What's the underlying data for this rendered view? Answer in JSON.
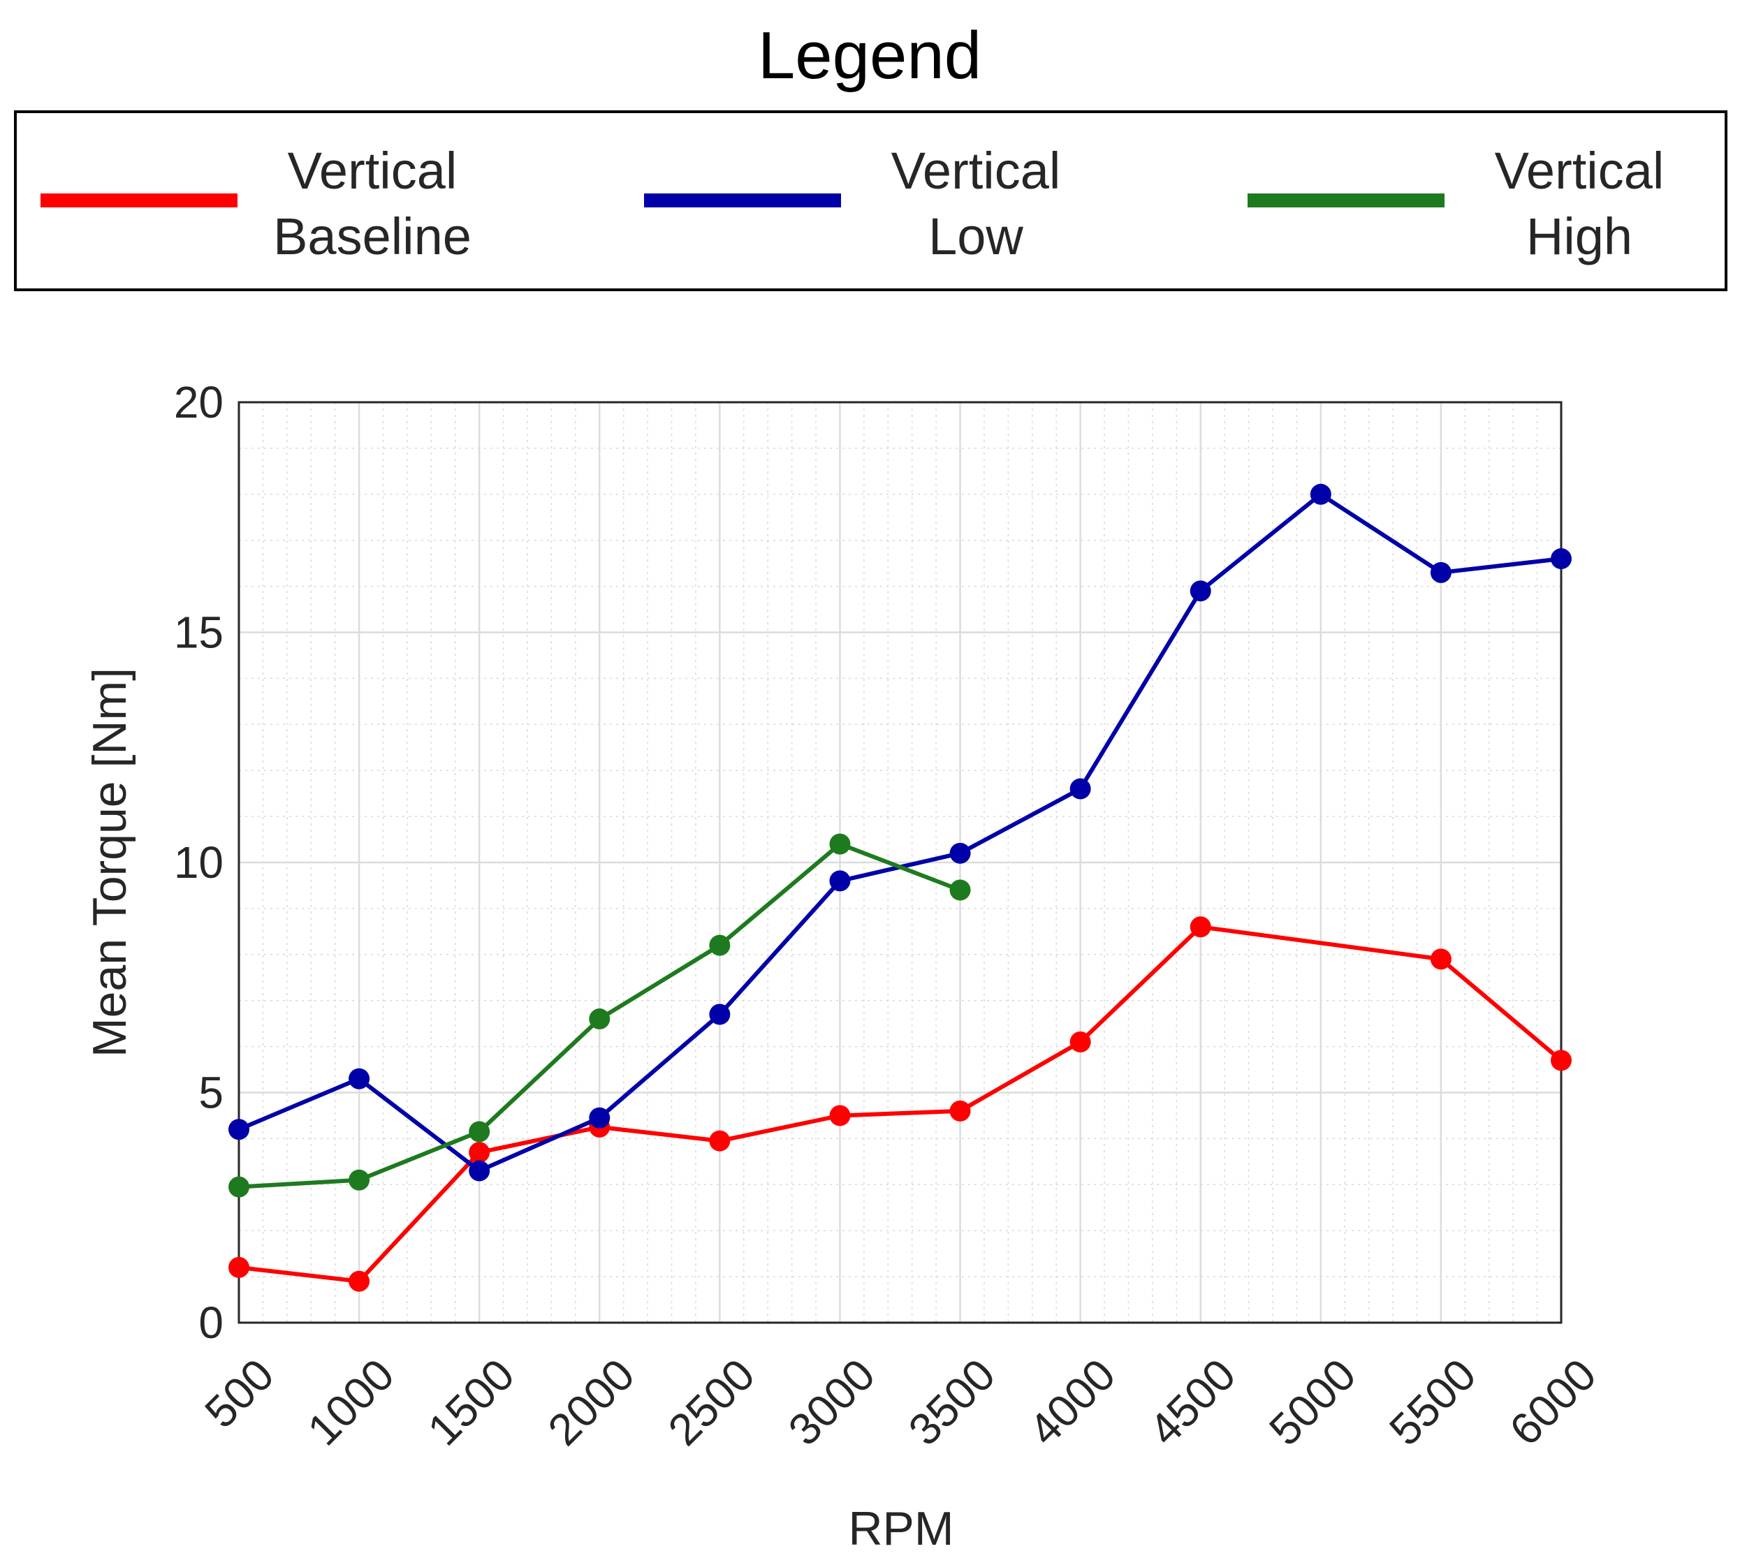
{
  "chart_data": {
    "type": "line",
    "title": "",
    "legend_title": "Legend",
    "legend_position": "top",
    "xlabel": "RPM",
    "ylabel": "Mean Torque [Nm]",
    "x": [
      500,
      1000,
      1500,
      2000,
      2500,
      3000,
      3500,
      4000,
      4500,
      5000,
      5500,
      6000
    ],
    "xlim": [
      500,
      6000
    ],
    "ylim": [
      0,
      20
    ],
    "x_ticks": [
      "500",
      "1000",
      "1500",
      "2000",
      "2500",
      "3000",
      "3500",
      "4000",
      "4500",
      "5000",
      "5500",
      "6000"
    ],
    "y_ticks": [
      "0",
      "5",
      "10",
      "15",
      "20"
    ],
    "grid": true,
    "minor_grid": true,
    "series": [
      {
        "name_lines": [
          "Vertical",
          "Baseline"
        ],
        "color": "#ff0000",
        "x": [
          500,
          1000,
          1500,
          2000,
          2500,
          3000,
          3500,
          4000,
          4500,
          5500,
          6000
        ],
        "values": [
          1.2,
          0.9,
          3.7,
          4.25,
          3.95,
          4.5,
          4.6,
          6.1,
          8.6,
          7.9,
          5.7
        ]
      },
      {
        "name_lines": [
          "Vertical",
          "Low"
        ],
        "color": "#0000a8",
        "x": [
          500,
          1000,
          1500,
          2000,
          2500,
          3000,
          3500,
          4000,
          4500,
          5000,
          5500,
          6000
        ],
        "values": [
          4.2,
          5.3,
          3.3,
          4.45,
          6.7,
          9.6,
          10.2,
          11.6,
          15.9,
          18.0,
          16.3,
          16.6
        ]
      },
      {
        "name_lines": [
          "Vertical",
          "High"
        ],
        "color": "#1e7a1e",
        "x": [
          500,
          1000,
          1500,
          2000,
          2500,
          3000,
          3500
        ],
        "values": [
          2.95,
          3.1,
          4.15,
          6.6,
          8.2,
          10.4,
          9.4
        ]
      }
    ]
  }
}
